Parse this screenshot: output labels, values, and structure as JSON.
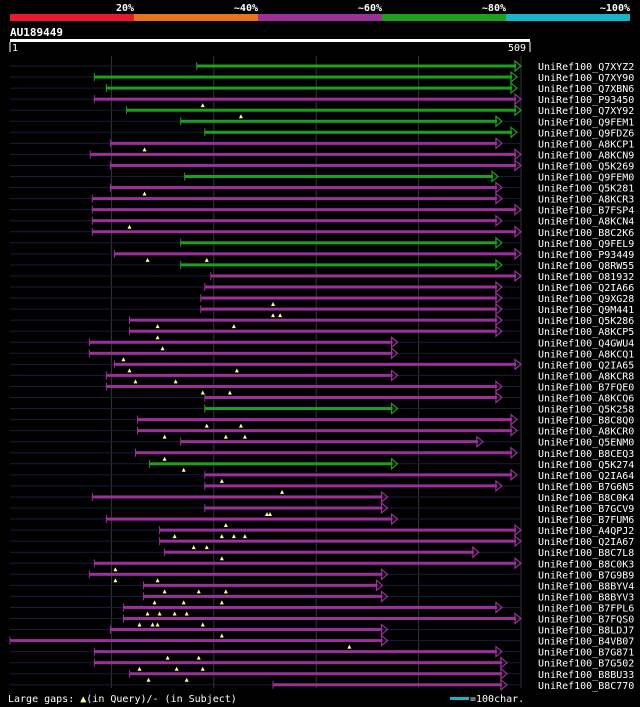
{
  "color_bar": {
    "segments": [
      {
        "label": "20%",
        "color": "#e8192c"
      },
      {
        "label": "~40%",
        "color": "#e8731e"
      },
      {
        "label": "~60%",
        "color": "#9b309b"
      },
      {
        "label": "~80%",
        "color": "#1ea01e"
      },
      {
        "label": "~100%",
        "color": "#19b4c8"
      }
    ]
  },
  "query": {
    "id": "AU189449",
    "start_label": "1",
    "end_label": "509",
    "length": 509
  },
  "colors": {
    "background": "#000000",
    "ruler": "#ffffff",
    "grid": "#333344",
    "row_line": "#1b1b3a",
    "text": "#ffffff",
    "gap_marker": "#ffff99",
    "scale_bar": "#19b4c8"
  },
  "hits": [
    {
      "name": "UniRef100_Q7XYZ2",
      "start": 187,
      "end": 509,
      "color": "#1ea01e",
      "gaps": []
    },
    {
      "name": "UniRef100_Q7XY90",
      "start": 85,
      "end": 505,
      "color": "#1ea01e",
      "gaps": []
    },
    {
      "name": "UniRef100_Q7XBN6",
      "start": 97,
      "end": 505,
      "color": "#1ea01e",
      "gaps": []
    },
    {
      "name": "UniRef100_P93450",
      "start": 85,
      "end": 509,
      "color": "#9b309b",
      "gaps": [
        193
      ]
    },
    {
      "name": "UniRef100_Q7XY92",
      "start": 117,
      "end": 509,
      "color": "#1ea01e",
      "gaps": [
        231
      ]
    },
    {
      "name": "UniRef100_Q9FEM1",
      "start": 171,
      "end": 490,
      "color": "#1ea01e",
      "gaps": []
    },
    {
      "name": "UniRef100_Q9FDZ6",
      "start": 195,
      "end": 505,
      "color": "#1ea01e",
      "gaps": []
    },
    {
      "name": "UniRef100_A8KCP1",
      "start": 101,
      "end": 490,
      "color": "#9b309b",
      "gaps": [
        135
      ]
    },
    {
      "name": "UniRef100_A8KCN9",
      "start": 81,
      "end": 509,
      "color": "#9b309b",
      "gaps": []
    },
    {
      "name": "UniRef100_Q5K269",
      "start": 101,
      "end": 509,
      "color": "#9b309b",
      "gaps": []
    },
    {
      "name": "UniRef100_Q9FEM0",
      "start": 175,
      "end": 486,
      "color": "#1ea01e",
      "gaps": []
    },
    {
      "name": "UniRef100_Q5K281",
      "start": 101,
      "end": 490,
      "color": "#9b309b",
      "gaps": [
        135
      ]
    },
    {
      "name": "UniRef100_A8KCR3",
      "start": 83,
      "end": 490,
      "color": "#9b309b",
      "gaps": []
    },
    {
      "name": "UniRef100_B7FSP4",
      "start": 83,
      "end": 509,
      "color": "#9b309b",
      "gaps": []
    },
    {
      "name": "UniRef100_A8KCN4",
      "start": 83,
      "end": 490,
      "color": "#9b309b",
      "gaps": [
        120
      ]
    },
    {
      "name": "UniRef100_B8C2K6",
      "start": 83,
      "end": 509,
      "color": "#9b309b",
      "gaps": []
    },
    {
      "name": "UniRef100_Q9FEL9",
      "start": 171,
      "end": 490,
      "color": "#1ea01e",
      "gaps": []
    },
    {
      "name": "UniRef100_P93449",
      "start": 105,
      "end": 509,
      "color": "#9b309b",
      "gaps": [
        138,
        197
      ]
    },
    {
      "name": "UniRef100_Q8RW55",
      "start": 171,
      "end": 490,
      "color": "#1ea01e",
      "gaps": []
    },
    {
      "name": "UniRef100_O81932",
      "start": 201,
      "end": 509,
      "color": "#9b309b",
      "gaps": []
    },
    {
      "name": "UniRef100_Q2IA66",
      "start": 195,
      "end": 490,
      "color": "#9b309b",
      "gaps": []
    },
    {
      "name": "UniRef100_Q9XG28",
      "start": 191,
      "end": 490,
      "color": "#9b309b",
      "gaps": [
        263
      ]
    },
    {
      "name": "UniRef100_Q9M441",
      "start": 191,
      "end": 490,
      "color": "#9b309b",
      "gaps": [
        263,
        270
      ]
    },
    {
      "name": "UniRef100_Q5K286",
      "start": 120,
      "end": 490,
      "color": "#9b309b",
      "gaps": [
        148,
        224
      ]
    },
    {
      "name": "UniRef100_A8KCP5",
      "start": 120,
      "end": 490,
      "color": "#9b309b",
      "gaps": [
        148
      ]
    },
    {
      "name": "UniRef100_Q4GWU4",
      "start": 80,
      "end": 386,
      "color": "#9b309b",
      "gaps": [
        153
      ]
    },
    {
      "name": "UniRef100_A8KCQ1",
      "start": 80,
      "end": 386,
      "color": "#9b309b",
      "gaps": [
        114
      ]
    },
    {
      "name": "UniRef100_Q2IA65",
      "start": 105,
      "end": 509,
      "color": "#9b309b",
      "gaps": [
        120,
        227
      ]
    },
    {
      "name": "UniRef100_A8KCR8",
      "start": 97,
      "end": 386,
      "color": "#9b309b",
      "gaps": [
        126,
        166
      ]
    },
    {
      "name": "UniRef100_B7FQE0",
      "start": 97,
      "end": 490,
      "color": "#9b309b",
      "gaps": [
        193,
        220
      ]
    },
    {
      "name": "UniRef100_A8KCQ6",
      "start": 195,
      "end": 490,
      "color": "#9b309b",
      "gaps": []
    },
    {
      "name": "UniRef100_Q5K258",
      "start": 195,
      "end": 386,
      "color": "#1ea01e",
      "gaps": []
    },
    {
      "name": "UniRef100_B8C8Q0",
      "start": 128,
      "end": 505,
      "color": "#9b309b",
      "gaps": [
        197,
        231
      ]
    },
    {
      "name": "UniRef100_A8KCR0",
      "start": 128,
      "end": 505,
      "color": "#9b309b",
      "gaps": [
        155,
        216,
        235
      ]
    },
    {
      "name": "UniRef100_Q5ENM0",
      "start": 171,
      "end": 471,
      "color": "#9b309b",
      "gaps": []
    },
    {
      "name": "UniRef100_B8CEQ3",
      "start": 126,
      "end": 505,
      "color": "#9b309b",
      "gaps": [
        155
      ]
    },
    {
      "name": "UniRef100_Q5K274",
      "start": 140,
      "end": 386,
      "color": "#1ea01e",
      "gaps": [
        174
      ]
    },
    {
      "name": "UniRef100_Q2IA64",
      "start": 195,
      "end": 505,
      "color": "#9b309b",
      "gaps": [
        212
      ]
    },
    {
      "name": "UniRef100_B7G6N5",
      "start": 195,
      "end": 490,
      "color": "#9b309b",
      "gaps": [
        272
      ]
    },
    {
      "name": "UniRef100_B8C0K4",
      "start": 83,
      "end": 376,
      "color": "#9b309b",
      "gaps": []
    },
    {
      "name": "UniRef100_B7GCV9",
      "start": 195,
      "end": 376,
      "color": "#9b309b",
      "gaps": [
        257,
        260
      ]
    },
    {
      "name": "UniRef100_B7FUM6",
      "start": 97,
      "end": 386,
      "color": "#9b309b",
      "gaps": [
        216
      ]
    },
    {
      "name": "UniRef100_A4QPJ2",
      "start": 150,
      "end": 509,
      "color": "#9b309b",
      "gaps": [
        165,
        212,
        224,
        235
      ]
    },
    {
      "name": "UniRef100_Q2IA67",
      "start": 150,
      "end": 509,
      "color": "#9b309b",
      "gaps": [
        184,
        197
      ]
    },
    {
      "name": "UniRef100_B8C7L8",
      "start": 155,
      "end": 467,
      "color": "#9b309b",
      "gaps": [
        212
      ]
    },
    {
      "name": "UniRef100_B8C0K3",
      "start": 85,
      "end": 509,
      "color": "#9b309b",
      "gaps": [
        106
      ]
    },
    {
      "name": "UniRef100_B7G9B9",
      "start": 80,
      "end": 376,
      "color": "#9b309b",
      "gaps": [
        106,
        148
      ]
    },
    {
      "name": "UniRef100_B8BYV4",
      "start": 134,
      "end": 371,
      "color": "#9b309b",
      "gaps": [
        155,
        189,
        216
      ]
    },
    {
      "name": "UniRef100_B8BYV3",
      "start": 134,
      "end": 376,
      "color": "#9b309b",
      "gaps": [
        145,
        174,
        212
      ]
    },
    {
      "name": "UniRef100_B7FPL6",
      "start": 114,
      "end": 490,
      "color": "#9b309b",
      "gaps": [
        138,
        150,
        165,
        177
      ]
    },
    {
      "name": "UniRef100_B7FQS0",
      "start": 114,
      "end": 509,
      "color": "#9b309b",
      "gaps": [
        130,
        143,
        148,
        193
      ]
    },
    {
      "name": "UniRef100_B8LDJ7",
      "start": 101,
      "end": 376,
      "color": "#9b309b",
      "gaps": [
        212
      ]
    },
    {
      "name": "UniRef100_B4VB07",
      "start": 1,
      "end": 376,
      "color": "#9b309b",
      "gaps": [
        339
      ]
    },
    {
      "name": "UniRef100_B7G871",
      "start": 85,
      "end": 490,
      "color": "#9b309b",
      "gaps": [
        158,
        189
      ]
    },
    {
      "name": "UniRef100_B7G502",
      "start": 85,
      "end": 495,
      "color": "#9b309b",
      "gaps": [
        130,
        167,
        193
      ]
    },
    {
      "name": "UniRef100_B8BU33",
      "start": 120,
      "end": 495,
      "color": "#9b309b",
      "gaps": [
        139,
        177
      ]
    },
    {
      "name": "UniRef100_B8C770",
      "start": 263,
      "end": 495,
      "color": "#9b309b",
      "gaps": []
    }
  ],
  "footer": {
    "legend_text": "Large gaps: ",
    "query_gap": "(in Query)/",
    "subject_gap": "- (in Subject)",
    "scale_text": "=100char."
  }
}
